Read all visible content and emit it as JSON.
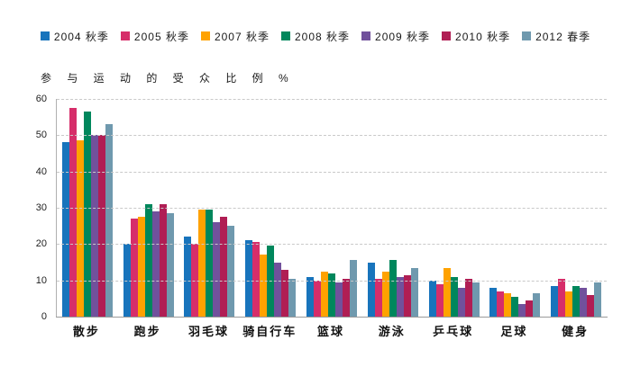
{
  "axis_title": "参 与 运 动 的 受 众 比 例  %",
  "chart_data": {
    "type": "bar",
    "title": "参与运动的受众比例 %",
    "ylabel": "参与运动的受众比例 %",
    "xlabel": "",
    "categories": [
      "散步",
      "跑步",
      "羽毛球",
      "骑自行车",
      "篮球",
      "游泳",
      "乒乓球",
      "足球",
      "健身"
    ],
    "series": [
      {
        "name": "2004 秋季",
        "color": "#1874bc",
        "values": [
          48,
          20,
          22,
          21,
          11,
          15,
          10,
          8,
          8.5
        ]
      },
      {
        "name": "2005 秋季",
        "color": "#d62e6a",
        "values": [
          57.5,
          27,
          20,
          20.5,
          10,
          10.5,
          9,
          7,
          10.5
        ]
      },
      {
        "name": "2007 秋季",
        "color": "#ffa200",
        "values": [
          48.5,
          27.5,
          29.5,
          17,
          12.5,
          12.5,
          13.5,
          6.5,
          7
        ]
      },
      {
        "name": "2008 秋季",
        "color": "#00875c",
        "values": [
          56.5,
          31,
          29.5,
          19.5,
          12,
          15.5,
          11,
          5.5,
          8.5
        ]
      },
      {
        "name": "2009 秋季",
        "color": "#71519c",
        "values": [
          50,
          29,
          26,
          15,
          9.5,
          11,
          8,
          3.5,
          8
        ]
      },
      {
        "name": "2010 秋季",
        "color": "#b01e54",
        "values": [
          50,
          31,
          27.5,
          13,
          10.5,
          11.5,
          10.5,
          4.5,
          6
        ]
      },
      {
        "name": "2012 春季",
        "color": "#6f99ae",
        "values": [
          53,
          28.5,
          25,
          10.5,
          15.5,
          13.5,
          9.5,
          6.5,
          9.5
        ]
      }
    ],
    "ylim": [
      0,
      60
    ],
    "yticks": [
      0,
      10,
      20,
      30,
      40,
      50,
      60
    ],
    "grid": "horizontal-dashed",
    "legend_position": "top"
  }
}
